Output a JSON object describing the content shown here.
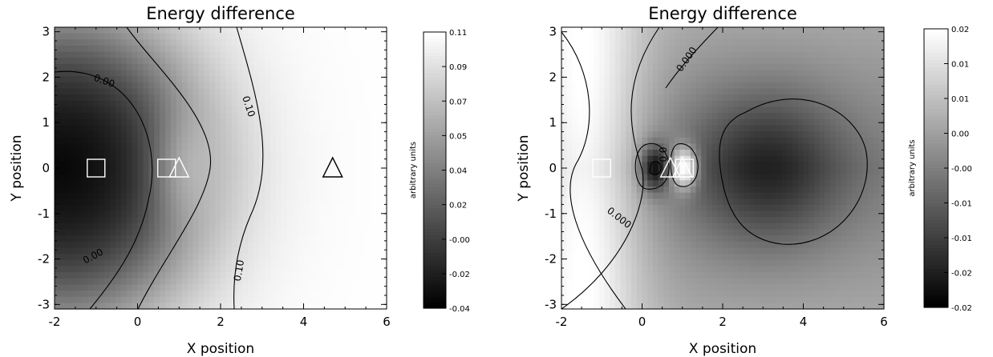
{
  "chart_data": [
    {
      "type": "heatmap",
      "title": "Energy difference",
      "xlabel": "X position",
      "ylabel": "Y position",
      "xlim": [
        -2,
        6
      ],
      "ylim": [
        -3.1,
        3.1
      ],
      "xticks": [
        "-2",
        "0",
        "2",
        "4",
        "6"
      ],
      "yticks": [
        "-3",
        "-2",
        "-1",
        "0",
        "1",
        "2",
        "3"
      ],
      "colormap": "grayscale (black = low, white = high)",
      "colorbar": {
        "label": "arbitrary units",
        "range": [
          -0.04,
          0.11
        ],
        "ticks": [
          "0.11",
          "0.09",
          "0.07",
          "0.05",
          "0.04",
          "0.02",
          "-0.00",
          "-0.02",
          "-0.04"
        ]
      },
      "contours": [
        {
          "level": 0.0,
          "label": "0.00"
        },
        {
          "level": 0.1,
          "label": "0.10"
        }
      ],
      "markers": [
        {
          "shape": "square",
          "x": -1.0,
          "y": 0.0
        },
        {
          "shape": "square",
          "x": 0.7,
          "y": 0.0
        },
        {
          "shape": "triangle",
          "x": 1.0,
          "y": 0.0
        },
        {
          "shape": "triangle",
          "x": 4.7,
          "y": 0.0
        }
      ]
    },
    {
      "type": "heatmap",
      "title": "Energy difference",
      "xlabel": "X position",
      "ylabel": "Y position",
      "xlim": [
        -2,
        6
      ],
      "ylim": [
        -3.1,
        3.1
      ],
      "xticks": [
        "-2",
        "0",
        "2",
        "4",
        "6"
      ],
      "yticks": [
        "-3",
        "-2",
        "-1",
        "0",
        "1",
        "2",
        "3"
      ],
      "colormap": "grayscale (black = low, white = high)",
      "colorbar": {
        "label": "arbitrary units",
        "range": [
          -0.02,
          0.02
        ],
        "ticks": [
          "0.02",
          "0.01",
          "0.01",
          "0.00",
          "-0.00",
          "-0.01",
          "-0.01",
          "-0.02",
          "-0.02"
        ]
      },
      "contours": [
        {
          "level": 0.0,
          "label": "0.000"
        },
        {
          "level": 0.0,
          "label": "0.0"
        }
      ],
      "markers": [
        {
          "shape": "square",
          "x": -1.0,
          "y": 0.0
        },
        {
          "shape": "triangle",
          "x": 0.7,
          "y": 0.0
        },
        {
          "shape": "triangle",
          "x": 1.0,
          "y": 0.0
        },
        {
          "shape": "square",
          "x": 1.05,
          "y": 0.0
        }
      ]
    }
  ]
}
